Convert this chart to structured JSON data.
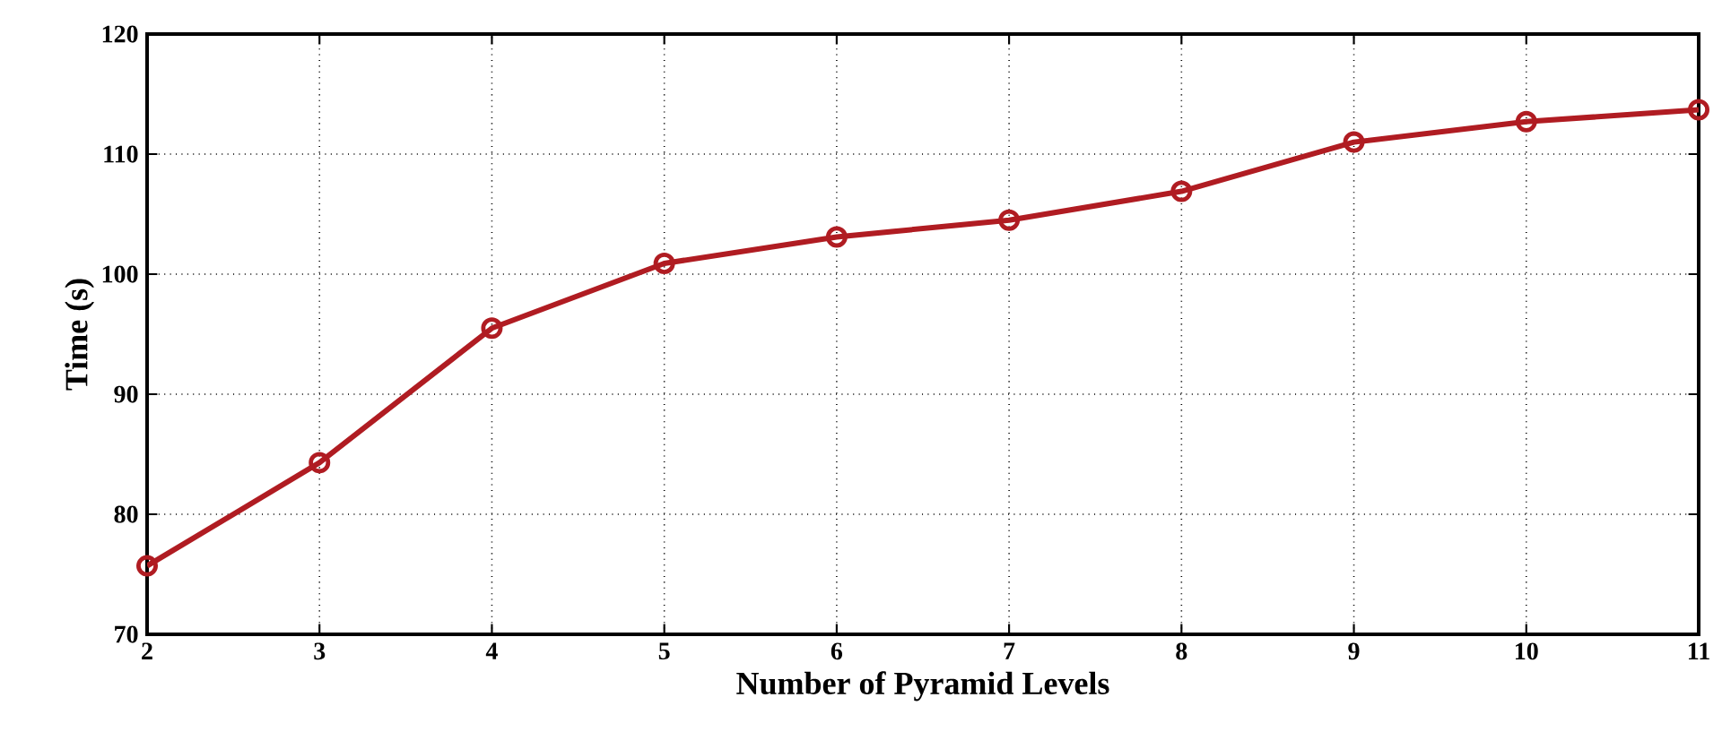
{
  "chart_data": {
    "type": "line",
    "xlabel": "Number of Pyramid Levels",
    "ylabel": "Time (s)",
    "x": [
      2,
      3,
      4,
      5,
      6,
      7,
      8,
      9,
      10,
      11
    ],
    "series": [
      {
        "color": "#b01c22",
        "values": [
          75.7,
          84.3,
          95.5,
          100.9,
          103.1,
          104.5,
          106.9,
          111.0,
          112.7,
          113.7
        ]
      }
    ],
    "xlim": [
      2,
      11
    ],
    "xticks": [
      2,
      3,
      4,
      5,
      6,
      7,
      8,
      9,
      10,
      11
    ],
    "ylim": [
      70,
      120
    ],
    "yticks": [
      70,
      80,
      90,
      100,
      110,
      120
    ],
    "grid": true,
    "marker": "circle",
    "line_style": "solid"
  }
}
